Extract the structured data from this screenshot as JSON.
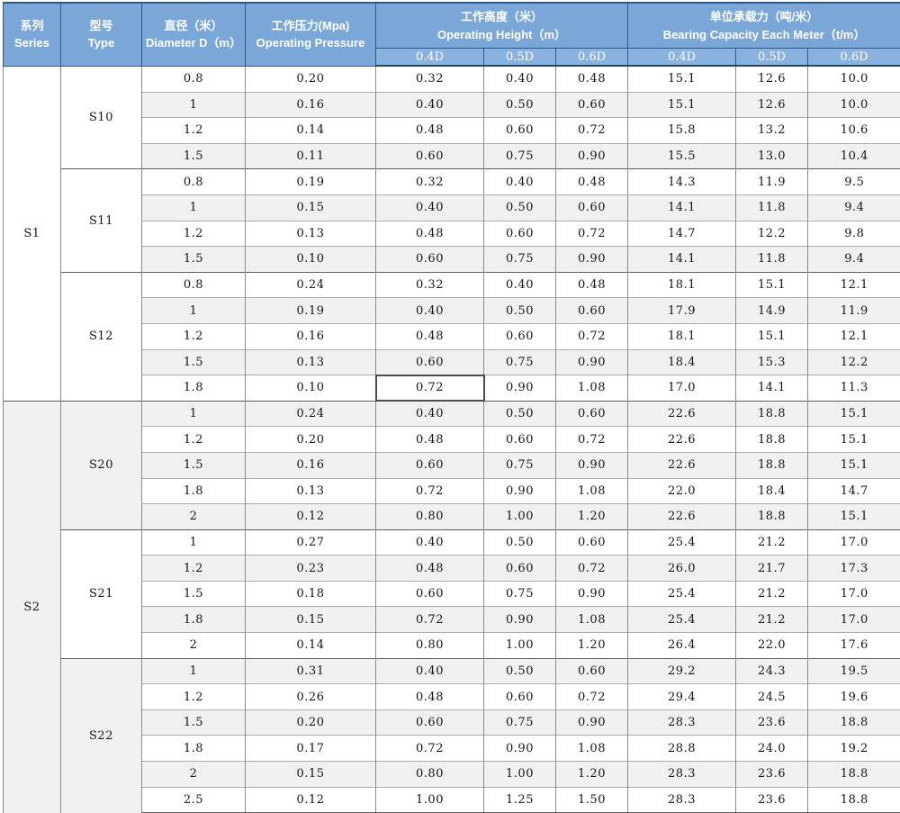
{
  "header": {
    "series": {
      "zh": "系列",
      "en": "Series"
    },
    "type": {
      "zh": "型号",
      "en": "Type"
    },
    "diameter": {
      "zh": "直径（米）",
      "en": "Diameter D（m）"
    },
    "pressure": {
      "zh": "工作压力(Mpa)",
      "en": "Operating Pressure"
    },
    "height": {
      "zh": "工作高度（米）",
      "en": "Operating Height（m）"
    },
    "bearing": {
      "zh": "单位承载力（吨/米）",
      "en": "Bearing Capacity Each Meter（t/m）"
    },
    "sub_columns": [
      "0.4D",
      "0.5D",
      "0.6D"
    ]
  },
  "series_groups": [
    {
      "series": "S1",
      "types": [
        {
          "type": "S10",
          "rows": [
            {
              "diameter": "0.8",
              "pressure": "0.20",
              "height": [
                "0.32",
                "0.40",
                "0.48"
              ],
              "bearing": [
                "15.1",
                "12.6",
                "10.0"
              ]
            },
            {
              "diameter": "1",
              "pressure": "0.16",
              "height": [
                "0.40",
                "0.50",
                "0.60"
              ],
              "bearing": [
                "15.1",
                "12.6",
                "10.0"
              ]
            },
            {
              "diameter": "1.2",
              "pressure": "0.14",
              "height": [
                "0.48",
                "0.60",
                "0.72"
              ],
              "bearing": [
                "15.8",
                "13.2",
                "10.6"
              ]
            },
            {
              "diameter": "1.5",
              "pressure": "0.11",
              "height": [
                "0.60",
                "0.75",
                "0.90"
              ],
              "bearing": [
                "15.5",
                "13.0",
                "10.4"
              ]
            }
          ]
        },
        {
          "type": "S11",
          "rows": [
            {
              "diameter": "0.8",
              "pressure": "0.19",
              "height": [
                "0.32",
                "0.40",
                "0.48"
              ],
              "bearing": [
                "14.3",
                "11.9",
                "9.5"
              ]
            },
            {
              "diameter": "1",
              "pressure": "0.15",
              "height": [
                "0.40",
                "0.50",
                "0.60"
              ],
              "bearing": [
                "14.1",
                "11.8",
                "9.4"
              ]
            },
            {
              "diameter": "1.2",
              "pressure": "0.13",
              "height": [
                "0.48",
                "0.60",
                "0.72"
              ],
              "bearing": [
                "14.7",
                "12.2",
                "9.8"
              ]
            },
            {
              "diameter": "1.5",
              "pressure": "0.10",
              "height": [
                "0.60",
                "0.75",
                "0.90"
              ],
              "bearing": [
                "14.1",
                "11.8",
                "9.4"
              ]
            }
          ]
        },
        {
          "type": "S12",
          "rows": [
            {
              "diameter": "0.8",
              "pressure": "0.24",
              "height": [
                "0.32",
                "0.40",
                "0.48"
              ],
              "bearing": [
                "18.1",
                "15.1",
                "12.1"
              ]
            },
            {
              "diameter": "1",
              "pressure": "0.19",
              "height": [
                "0.40",
                "0.50",
                "0.60"
              ],
              "bearing": [
                "17.9",
                "14.9",
                "11.9"
              ]
            },
            {
              "diameter": "1.2",
              "pressure": "0.16",
              "height": [
                "0.48",
                "0.60",
                "0.72"
              ],
              "bearing": [
                "18.1",
                "15.1",
                "12.1"
              ]
            },
            {
              "diameter": "1.5",
              "pressure": "0.13",
              "height": [
                "0.60",
                "0.75",
                "0.90"
              ],
              "bearing": [
                "18.4",
                "15.3",
                "12.2"
              ]
            },
            {
              "diameter": "1.8",
              "pressure": "0.10",
              "height": [
                "0.72",
                "0.90",
                "1.08"
              ],
              "bearing": [
                "17.0",
                "14.1",
                "11.3"
              ]
            }
          ]
        }
      ]
    },
    {
      "series": "S2",
      "types": [
        {
          "type": "S20",
          "rows": [
            {
              "diameter": "1",
              "pressure": "0.24",
              "height": [
                "0.40",
                "0.50",
                "0.60"
              ],
              "bearing": [
                "22.6",
                "18.8",
                "15.1"
              ]
            },
            {
              "diameter": "1.2",
              "pressure": "0.20",
              "height": [
                "0.48",
                "0.60",
                "0.72"
              ],
              "bearing": [
                "22.6",
                "18.8",
                "15.1"
              ]
            },
            {
              "diameter": "1.5",
              "pressure": "0.16",
              "height": [
                "0.60",
                "0.75",
                "0.90"
              ],
              "bearing": [
                "22.6",
                "18.8",
                "15.1"
              ]
            },
            {
              "diameter": "1.8",
              "pressure": "0.13",
              "height": [
                "0.72",
                "0.90",
                "1.08"
              ],
              "bearing": [
                "22.0",
                "18.4",
                "14.7"
              ]
            },
            {
              "diameter": "2",
              "pressure": "0.12",
              "height": [
                "0.80",
                "1.00",
                "1.20"
              ],
              "bearing": [
                "22.6",
                "18.8",
                "15.1"
              ]
            }
          ]
        },
        {
          "type": "S21",
          "rows": [
            {
              "diameter": "1",
              "pressure": "0.27",
              "height": [
                "0.40",
                "0.50",
                "0.60"
              ],
              "bearing": [
                "25.4",
                "21.2",
                "17.0"
              ]
            },
            {
              "diameter": "1.2",
              "pressure": "0.23",
              "height": [
                "0.48",
                "0.60",
                "0.72"
              ],
              "bearing": [
                "26.0",
                "21.7",
                "17.3"
              ]
            },
            {
              "diameter": "1.5",
              "pressure": "0.18",
              "height": [
                "0.60",
                "0.75",
                "0.90"
              ],
              "bearing": [
                "25.4",
                "21.2",
                "17.0"
              ]
            },
            {
              "diameter": "1.8",
              "pressure": "0.15",
              "height": [
                "0.72",
                "0.90",
                "1.08"
              ],
              "bearing": [
                "25.4",
                "21.2",
                "17.0"
              ]
            },
            {
              "diameter": "2",
              "pressure": "0.14",
              "height": [
                "0.80",
                "1.00",
                "1.20"
              ],
              "bearing": [
                "26.4",
                "22.0",
                "17.6"
              ]
            }
          ]
        },
        {
          "type": "S22",
          "rows": [
            {
              "diameter": "1",
              "pressure": "0.31",
              "height": [
                "0.40",
                "0.50",
                "0.60"
              ],
              "bearing": [
                "29.2",
                "24.3",
                "19.5"
              ]
            },
            {
              "diameter": "1.2",
              "pressure": "0.26",
              "height": [
                "0.48",
                "0.60",
                "0.72"
              ],
              "bearing": [
                "29.4",
                "24.5",
                "19.6"
              ]
            },
            {
              "diameter": "1.5",
              "pressure": "0.20",
              "height": [
                "0.60",
                "0.75",
                "0.90"
              ],
              "bearing": [
                "28.3",
                "23.6",
                "18.8"
              ]
            },
            {
              "diameter": "1.8",
              "pressure": "0.17",
              "height": [
                "0.72",
                "0.90",
                "1.08"
              ],
              "bearing": [
                "28.8",
                "24.0",
                "19.2"
              ]
            },
            {
              "diameter": "2",
              "pressure": "0.15",
              "height": [
                "0.80",
                "1.00",
                "1.20"
              ],
              "bearing": [
                "28.3",
                "23.6",
                "18.8"
              ]
            },
            {
              "diameter": "2.5",
              "pressure": "0.12",
              "height": [
                "1.00",
                "1.25",
                "1.50"
              ],
              "bearing": [
                "28.3",
                "23.6",
                "18.8"
              ]
            }
          ]
        }
      ]
    }
  ],
  "selection": {
    "type": "S12",
    "diameter": "1.8",
    "field": "height",
    "index": 0,
    "value": "0.72"
  },
  "colors": {
    "header_bg": "#7BA7D8",
    "subheader_bg": "#8AB2DF",
    "header_border": "#2E5984",
    "header_border_dark": "#24466B",
    "stripe_bg": "#F0F0F0",
    "grid_line": "#8C8C8C",
    "row_line": "#ABABAB",
    "group_line": "#5F5F5F",
    "selection_border": "#4D4D4D"
  }
}
